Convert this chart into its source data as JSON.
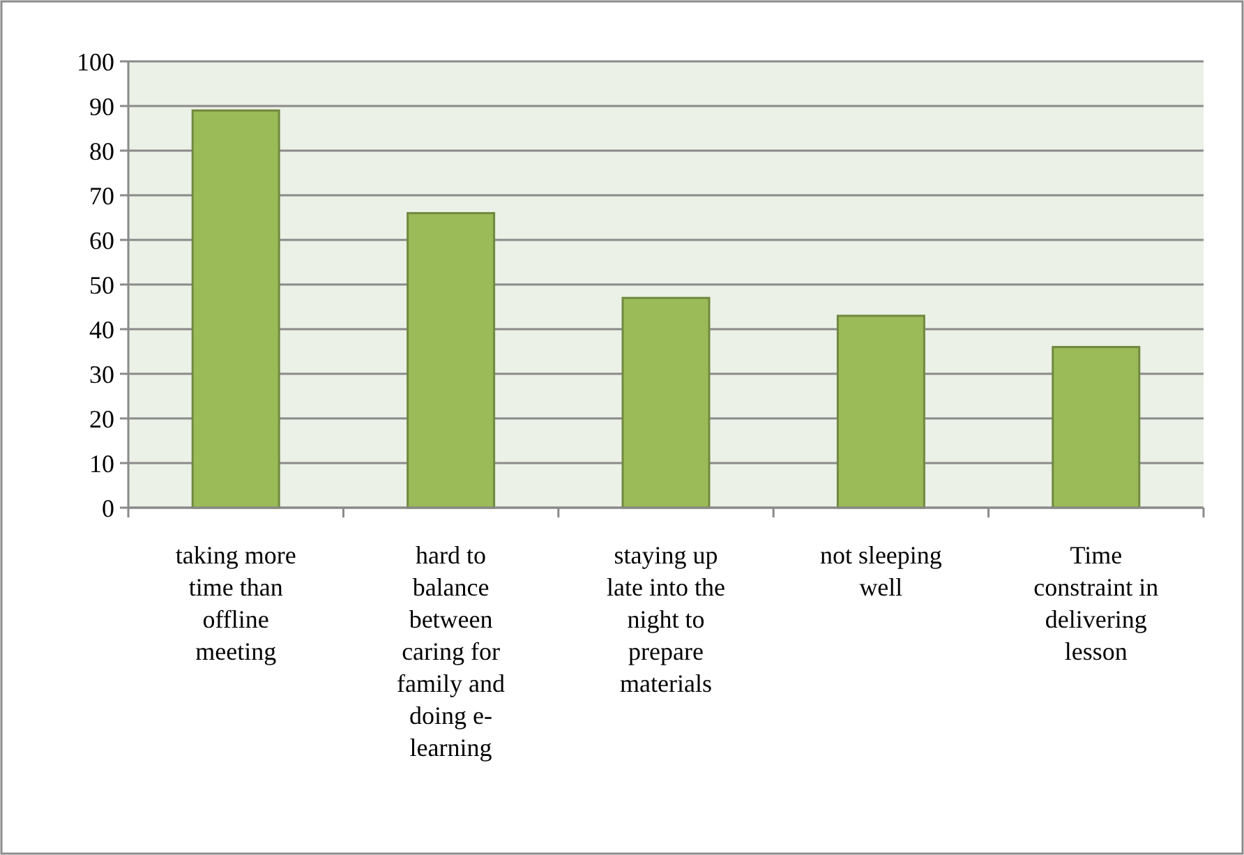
{
  "chart_data": {
    "type": "bar",
    "categories": [
      "taking more time than offline meeting",
      "hard to balance between caring for family and doing e-learning",
      "staying up late into the night to prepare materials",
      "not sleeping well",
      "Time constraint in delivering lesson"
    ],
    "values": [
      89,
      66,
      47,
      43,
      36
    ],
    "color": "#9bbb59",
    "ylim": [
      0,
      100
    ],
    "yticks": [
      0,
      10,
      20,
      30,
      40,
      50,
      60,
      70,
      80,
      90,
      100
    ],
    "grid": "y"
  }
}
